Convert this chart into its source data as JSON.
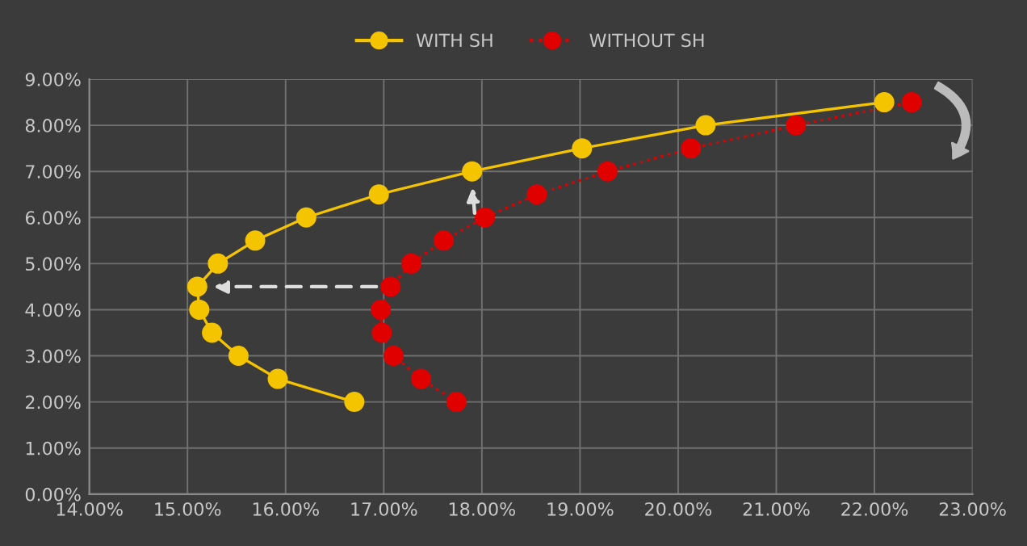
{
  "chart_data": {
    "type": "line",
    "series": [
      {
        "name": "WITH SH",
        "color": "#f5c400",
        "x": [
          16.7,
          15.92,
          15.52,
          15.25,
          15.12,
          15.1,
          15.31,
          15.69,
          16.21,
          16.95,
          17.9,
          19.02,
          20.28,
          22.1
        ],
        "values": [
          2.0,
          2.5,
          3.0,
          3.5,
          4.0,
          4.5,
          5.0,
          5.5,
          6.0,
          6.5,
          7.0,
          7.5,
          8.0,
          8.5
        ],
        "line_style": "solid"
      },
      {
        "name": "WITHOUT SH",
        "color": "#e00000",
        "x": [
          17.74,
          17.38,
          17.1,
          16.98,
          16.97,
          17.07,
          17.28,
          17.61,
          18.03,
          18.56,
          19.28,
          20.13,
          21.2,
          22.38
        ],
        "values": [
          2.0,
          2.5,
          3.0,
          3.5,
          4.0,
          4.5,
          5.0,
          5.5,
          6.0,
          6.5,
          7.0,
          7.5,
          8.0,
          8.5
        ],
        "line_style": "dotted"
      }
    ],
    "marker": "circle",
    "xlim": [
      14,
      23
    ],
    "xticks": [
      {
        "value": 14,
        "label": "14.00%"
      },
      {
        "value": 15,
        "label": "15.00%"
      },
      {
        "value": 16,
        "label": "16.00%"
      },
      {
        "value": 17,
        "label": "17.00%"
      },
      {
        "value": 18,
        "label": "18.00%"
      },
      {
        "value": 19,
        "label": "19.00%"
      },
      {
        "value": 20,
        "label": "20.00%"
      },
      {
        "value": 21,
        "label": "21.00%"
      },
      {
        "value": 22,
        "label": "22.00%"
      },
      {
        "value": 23,
        "label": "23.00%"
      }
    ],
    "ylim": [
      0,
      9
    ],
    "yticks": [
      {
        "value": 0,
        "label": "0.00%"
      },
      {
        "value": 1,
        "label": "1.00%"
      },
      {
        "value": 2,
        "label": "2.00%"
      },
      {
        "value": 3,
        "label": "3.00%"
      },
      {
        "value": 4,
        "label": "4.00%"
      },
      {
        "value": 5,
        "label": "5.00%"
      },
      {
        "value": 6,
        "label": "6.00%"
      },
      {
        "value": 7,
        "label": "7.00%"
      },
      {
        "value": 8,
        "label": "8.00%"
      },
      {
        "value": 9,
        "label": "9.00%"
      }
    ],
    "grid": true,
    "legend": "top"
  }
}
